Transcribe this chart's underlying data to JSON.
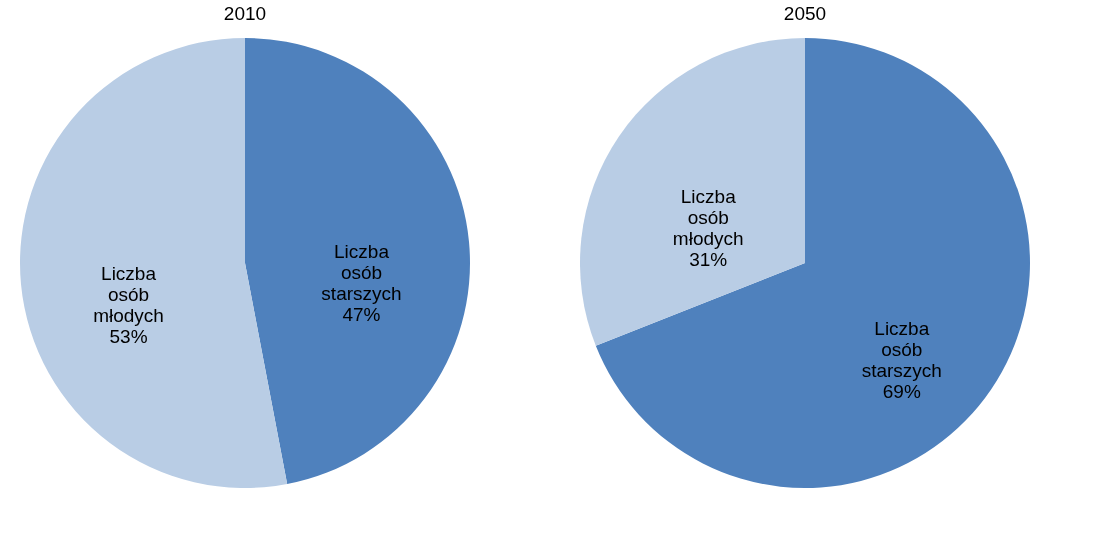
{
  "chart_data": [
    {
      "type": "pie",
      "title": "2010",
      "categories": [
        "Liczba osób starszych",
        "Liczba osób młodych"
      ],
      "values": [
        47,
        53
      ],
      "value_labels": [
        "47%",
        "53%"
      ],
      "colors": [
        "#4f81bd",
        "#b9cde5"
      ],
      "legend": false
    },
    {
      "type": "pie",
      "title": "2050",
      "categories": [
        "Liczba osób starszych",
        "Liczba osób młodych"
      ],
      "values": [
        69,
        31
      ],
      "value_labels": [
        "69%",
        "31%"
      ],
      "colors": [
        "#4f81bd",
        "#b9cde5"
      ],
      "legend": false
    }
  ]
}
